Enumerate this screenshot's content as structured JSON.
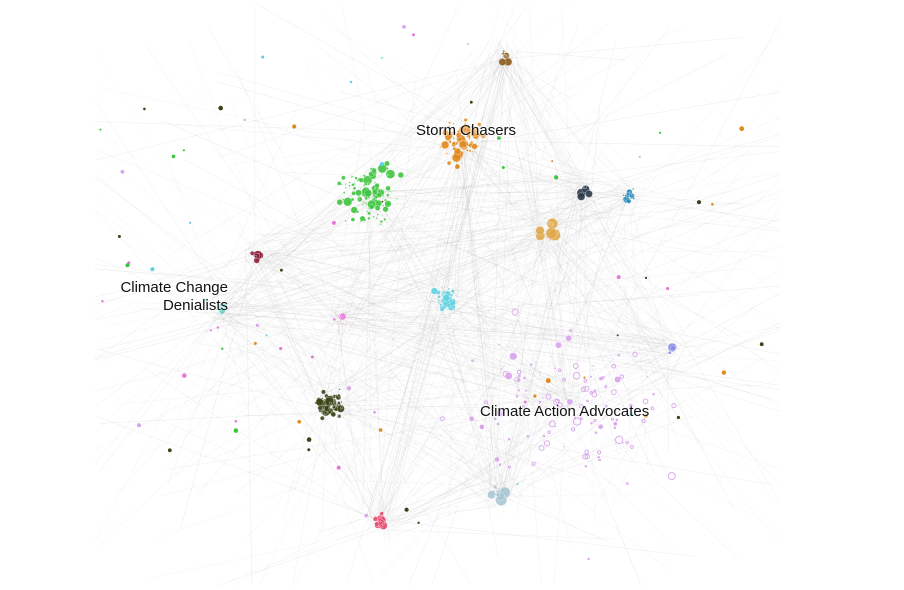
{
  "labels": {
    "storm_chasers": "Storm Chasers",
    "denialists_line1": "Climate Change",
    "denialists_line2": "Denialists",
    "action_advocates": "Climate Action Advocates"
  },
  "colors": {
    "edges": "#9a9a9a",
    "storm_chasers": "#e08a1e",
    "storm_top": "#8a5a1a",
    "green_cluster": "#3fc43f",
    "cyan_hub": "#5fd0e0",
    "dark_olive": "#3a4418",
    "pink_red": "#e8456a",
    "light_violet": "#d8a4ec",
    "steel_blue": "#2a86b8",
    "navy": "#2e3a4a",
    "gold": "#e0a84a",
    "maroon": "#8a1e3a",
    "teal": "#4ac9c0",
    "magenta": "#e67ad8",
    "light_blue_gray": "#a9c6d2",
    "periwinkle": "#8a8ae6"
  }
}
